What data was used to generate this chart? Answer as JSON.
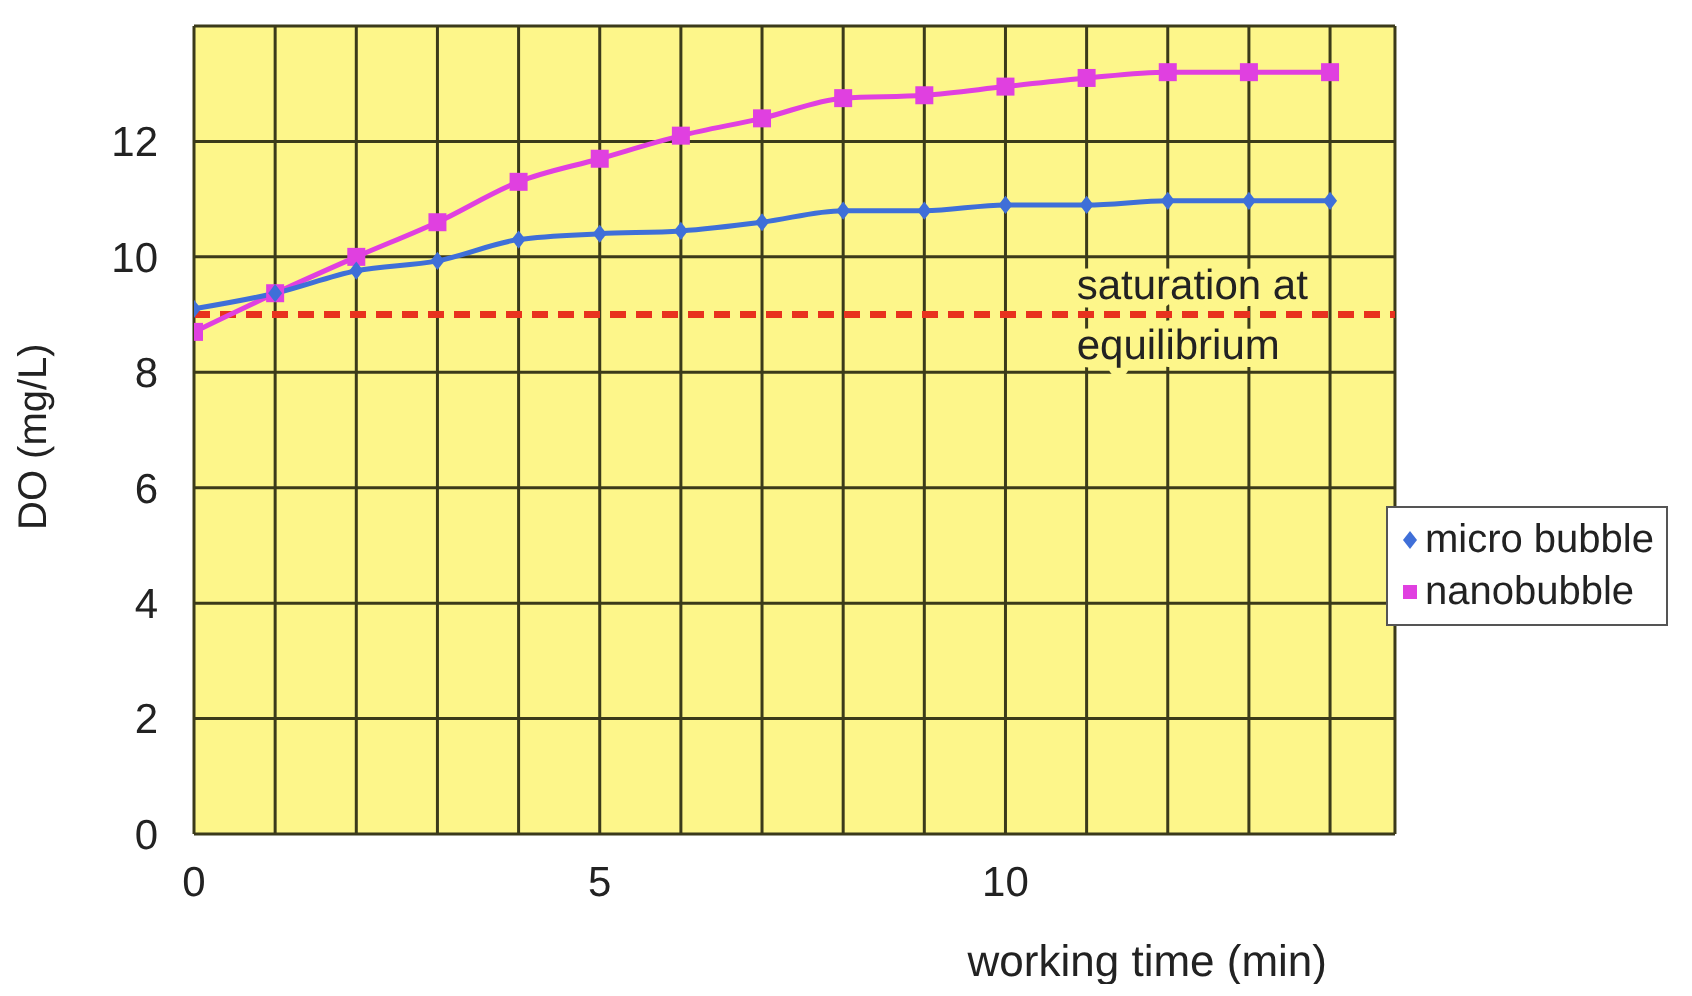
{
  "chart_data": {
    "type": "line",
    "xlabel": "working time (min)",
    "ylabel": "DO (mg/L)",
    "x": [
      0,
      1,
      2,
      3,
      4,
      5,
      6,
      7,
      8,
      9,
      10,
      11,
      12,
      13,
      14
    ],
    "series": [
      {
        "name": "micro bubble",
        "color": "#3f6fd8",
        "marker": "diamond",
        "values": [
          9.1,
          9.37,
          9.76,
          9.93,
          10.3,
          10.4,
          10.45,
          10.6,
          10.8,
          10.8,
          10.9,
          10.9,
          10.97,
          10.97,
          10.97
        ]
      },
      {
        "name": "nanobubble",
        "color": "#e040e0",
        "marker": "square",
        "values": [
          8.7,
          9.37,
          10.0,
          10.6,
          11.3,
          11.7,
          12.1,
          12.4,
          12.75,
          12.8,
          12.95,
          13.1,
          13.2,
          13.2,
          13.2
        ]
      }
    ],
    "xlim": [
      0,
      14.8
    ],
    "xticks": [
      0,
      {
        "value": 1,
        "label": null
      },
      {
        "value": 2,
        "label": null
      },
      {
        "value": 3,
        "label": null
      },
      {
        "value": 4,
        "label": null
      },
      5,
      {
        "value": 6,
        "label": null
      },
      {
        "value": 7,
        "label": null
      },
      {
        "value": 8,
        "label": null
      },
      {
        "value": 9,
        "label": null
      },
      10,
      {
        "value": 11,
        "label": null
      },
      {
        "value": 12,
        "label": null
      },
      {
        "value": 13,
        "label": null
      },
      {
        "value": 14,
        "label": null
      }
    ],
    "ylim": [
      0,
      14
    ],
    "yticks": [
      0,
      2,
      4,
      6,
      8,
      10,
      12
    ],
    "ref_lines": [
      {
        "axis": "y",
        "value": 9,
        "label": "saturation at equilibrium",
        "color": "#e8321e",
        "line_style": "dashed"
      }
    ],
    "grid": true,
    "legend": "right",
    "line_style": "solid"
  }
}
